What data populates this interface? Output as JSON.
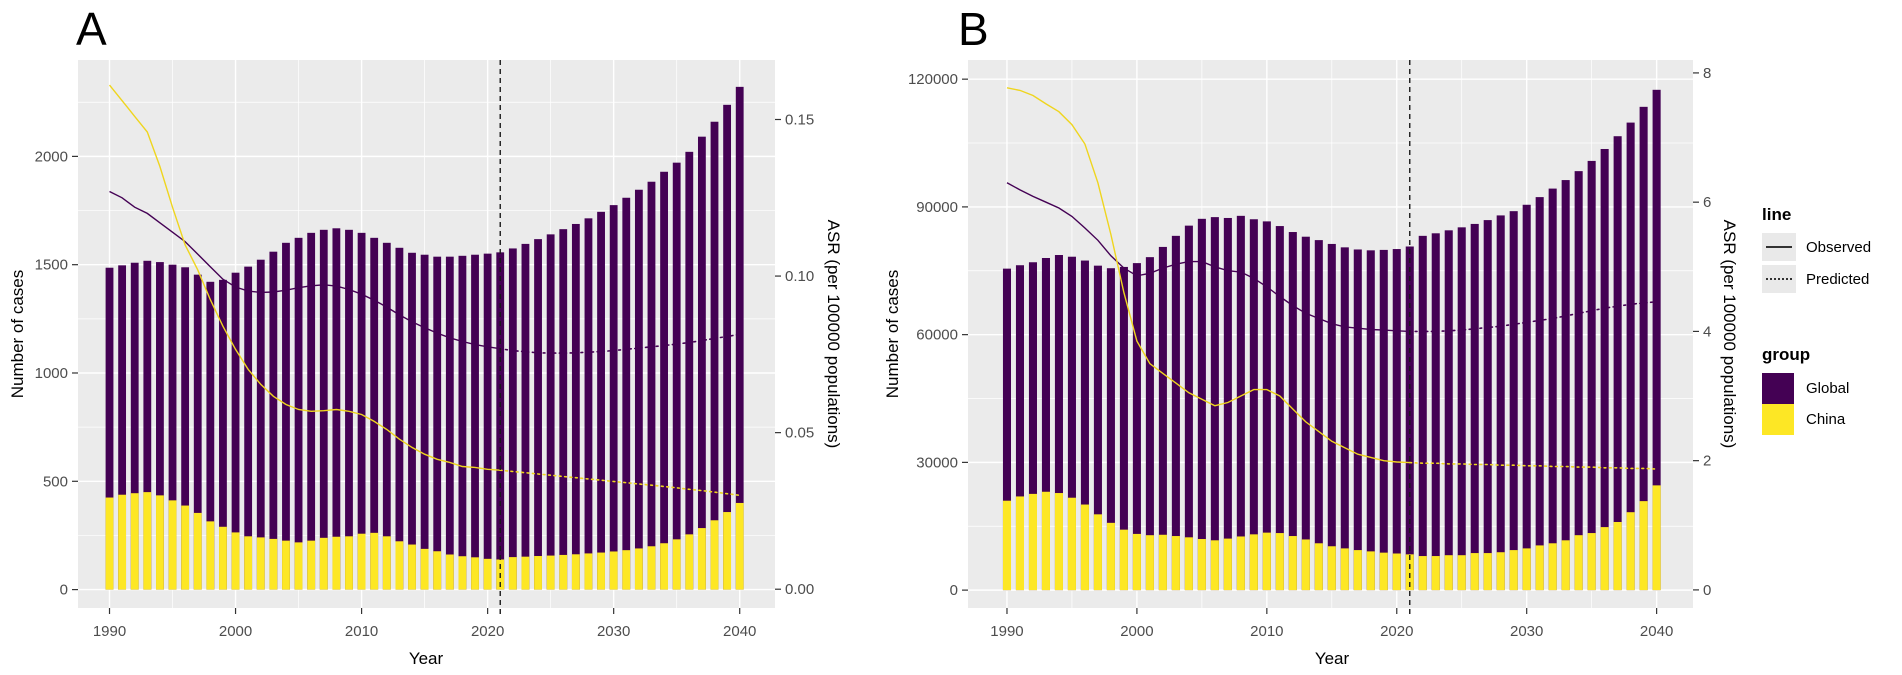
{
  "figure": {
    "background": "#FFFFFF"
  },
  "colors": {
    "global": "#440154",
    "china": "#FDE725",
    "china_line": "#EFD51E",
    "global_line": "#440154",
    "panel_background": "#EBEBEB",
    "grid": "#FFFFFF",
    "axis_text": "#4D4D4D",
    "tick_mark": "#333333",
    "vline": "#1A1A1A",
    "legend_key_background": "#E9E9E9"
  },
  "legend": {
    "position": "right",
    "line_title": "line",
    "entries": [
      {
        "label": "Observed",
        "linetype": "solid"
      },
      {
        "label": "Predicted",
        "linetype": "dotted"
      }
    ],
    "group_title": "group",
    "groups": [
      {
        "label": "Global",
        "color": "#440154"
      },
      {
        "label": "China",
        "color": "#FDE725"
      }
    ]
  },
  "chart_data": [
    {
      "type": "bar+line",
      "panel_label": "A",
      "xlabel": "Year",
      "ylabel_left": "Number of cases",
      "ylabel_right": "ASR (per 100000 populations)",
      "legend_position": "right",
      "grid": true,
      "vline_x": 2021,
      "observed_until": 2021,
      "years": [
        1990,
        1991,
        1992,
        1993,
        1994,
        1995,
        1996,
        1997,
        1998,
        1999,
        2000,
        2001,
        2002,
        2003,
        2004,
        2005,
        2006,
        2007,
        2008,
        2009,
        2010,
        2011,
        2012,
        2013,
        2014,
        2015,
        2016,
        2017,
        2018,
        2019,
        2020,
        2021,
        2022,
        2023,
        2024,
        2025,
        2026,
        2027,
        2028,
        2029,
        2030,
        2031,
        2032,
        2033,
        2034,
        2035,
        2036,
        2037,
        2038,
        2039,
        2040
      ],
      "axes": {
        "x": {
          "label": "Year",
          "ticks": [
            1990,
            2000,
            2010,
            2020,
            2030,
            2040
          ],
          "range": [
            1987.5,
            2042.8
          ]
        },
        "y_left": {
          "label": "Number of cases",
          "ticks": [
            0,
            500,
            1000,
            1500,
            2000
          ],
          "tick_labels": [
            "0",
            "500",
            "1000",
            "1500",
            "2000"
          ],
          "range": [
            -85,
            2445
          ]
        },
        "y_right": {
          "label": "ASR (per 100000 populations)",
          "ticks": [
            0,
            0.05,
            0.1,
            0.15
          ],
          "tick_labels": [
            "0.00",
            "0.05",
            "0.10",
            "0.15"
          ],
          "range": [
            -0.006,
            0.169
          ]
        }
      },
      "series": [
        {
          "name": "Global",
          "role": "cases-bar",
          "axis": "left",
          "color": "#440154",
          "values": [
            1486,
            1497,
            1509,
            1518,
            1512,
            1500,
            1488,
            1454,
            1421,
            1430,
            1463,
            1491,
            1523,
            1560,
            1601,
            1624,
            1647,
            1661,
            1668,
            1661,
            1647,
            1624,
            1601,
            1578,
            1555,
            1546,
            1537,
            1537,
            1541,
            1546,
            1551,
            1557,
            1575,
            1596,
            1618,
            1640,
            1664,
            1688,
            1714,
            1744,
            1775,
            1809,
            1846,
            1883,
            1929,
            1971,
            2021,
            2091,
            2160,
            2238,
            2321
          ]
        },
        {
          "name": "China",
          "role": "cases-bar",
          "axis": "left",
          "color": "#FDE725",
          "values": [
            425,
            438,
            445,
            450,
            435,
            412,
            388,
            354,
            315,
            290,
            264,
            246,
            241,
            234,
            226,
            218,
            226,
            239,
            244,
            246,
            258,
            262,
            246,
            223,
            208,
            188,
            177,
            162,
            154,
            149,
            142,
            139,
            150,
            152,
            155,
            157,
            160,
            163,
            167,
            171,
            176,
            182,
            190,
            200,
            214,
            232,
            255,
            284,
            320,
            358,
            400
          ]
        },
        {
          "name": "Global",
          "role": "asr-line",
          "axis": "right",
          "color": "#440154",
          "values": [
            0.127,
            0.125,
            0.122,
            0.12,
            0.117,
            0.114,
            0.111,
            0.107,
            0.103,
            0.099,
            0.0965,
            0.0952,
            0.0948,
            0.0949,
            0.0955,
            0.0963,
            0.0969,
            0.0972,
            0.0968,
            0.0957,
            0.0942,
            0.0923,
            0.0901,
            0.0876,
            0.0854,
            0.0835,
            0.0818,
            0.0803,
            0.0791,
            0.0781,
            0.0774,
            0.0768,
            0.0762,
            0.0758,
            0.0755,
            0.0754,
            0.0754,
            0.0755,
            0.0757,
            0.0759,
            0.0762,
            0.0766,
            0.077,
            0.0774,
            0.0778,
            0.0783,
            0.0788,
            0.0794,
            0.0801,
            0.0807,
            0.0814
          ]
        },
        {
          "name": "China",
          "role": "asr-line",
          "axis": "right",
          "color": "#EFD51E",
          "values": [
            0.161,
            0.156,
            0.151,
            0.146,
            0.135,
            0.122,
            0.11,
            0.102,
            0.0925,
            0.084,
            0.0766,
            0.0702,
            0.0654,
            0.0616,
            0.059,
            0.0574,
            0.0568,
            0.057,
            0.0574,
            0.0568,
            0.0558,
            0.0536,
            0.051,
            0.0479,
            0.0453,
            0.0431,
            0.0415,
            0.0405,
            0.0392,
            0.0389,
            0.0383,
            0.038,
            0.0376,
            0.0372,
            0.0368,
            0.0364,
            0.036,
            0.0356,
            0.0352,
            0.0348,
            0.0344,
            0.034,
            0.0336,
            0.0332,
            0.0328,
            0.0324,
            0.0319,
            0.0315,
            0.031,
            0.0305,
            0.03
          ]
        }
      ]
    },
    {
      "type": "bar+line",
      "panel_label": "B",
      "xlabel": "Year",
      "ylabel_left": "Number of cases",
      "ylabel_right": "ASR (per 100000 populations)",
      "legend_position": "right",
      "grid": true,
      "vline_x": 2021,
      "observed_until": 2021,
      "years": [
        1990,
        1991,
        1992,
        1993,
        1994,
        1995,
        1996,
        1997,
        1998,
        1999,
        2000,
        2001,
        2002,
        2003,
        2004,
        2005,
        2006,
        2007,
        2008,
        2009,
        2010,
        2011,
        2012,
        2013,
        2014,
        2015,
        2016,
        2017,
        2018,
        2019,
        2020,
        2021,
        2022,
        2023,
        2024,
        2025,
        2026,
        2027,
        2028,
        2029,
        2030,
        2031,
        2032,
        2033,
        2034,
        2035,
        2036,
        2037,
        2038,
        2039,
        2040
      ],
      "axes": {
        "x": {
          "label": "Year",
          "ticks": [
            1990,
            2000,
            2010,
            2020,
            2030,
            2040
          ],
          "range": [
            1987.0,
            2042.8
          ]
        },
        "y_left": {
          "label": "Number of cases",
          "ticks": [
            0,
            30000,
            60000,
            90000,
            120000
          ],
          "tick_labels": [
            "0",
            "30000",
            "60000",
            "90000",
            "120000"
          ],
          "range": [
            -4200,
            124500
          ]
        },
        "y_right": {
          "label": "ASR (per 100000 populations)",
          "ticks": [
            0,
            2,
            4,
            6,
            8
          ],
          "tick_labels": [
            "0",
            "2",
            "4",
            "6",
            "8"
          ],
          "range": [
            -0.28,
            8.2
          ]
        }
      },
      "series": [
        {
          "name": "Global",
          "role": "cases-bar",
          "axis": "left",
          "color": "#440154",
          "values": [
            75500,
            76300,
            77000,
            78000,
            78700,
            78300,
            77400,
            76200,
            75600,
            75900,
            76800,
            78200,
            80600,
            83200,
            85600,
            87200,
            87600,
            87400,
            87900,
            87100,
            86600,
            85500,
            84100,
            83000,
            82200,
            81300,
            80500,
            80000,
            79800,
            79900,
            80100,
            80700,
            83200,
            83800,
            84500,
            85200,
            86000,
            86900,
            88000,
            89000,
            90500,
            92300,
            94300,
            96300,
            98400,
            100800,
            103600,
            106600,
            109800,
            113500,
            117500
          ]
        },
        {
          "name": "China",
          "role": "cases-bar",
          "axis": "left",
          "color": "#FDE725",
          "values": [
            21000,
            22000,
            22600,
            23100,
            22800,
            21700,
            20100,
            17800,
            15800,
            14200,
            13200,
            12900,
            13000,
            12700,
            12400,
            12000,
            11700,
            12100,
            12600,
            13100,
            13500,
            13400,
            12700,
            11900,
            11000,
            10300,
            9800,
            9400,
            9100,
            8800,
            8600,
            8400,
            8000,
            8000,
            8200,
            8200,
            8700,
            8700,
            8900,
            9400,
            9800,
            10500,
            11000,
            11700,
            12900,
            13400,
            14800,
            16000,
            18300,
            20900,
            24600
          ]
        },
        {
          "name": "Global",
          "role": "asr-line",
          "axis": "right",
          "color": "#440154",
          "values": [
            6.3,
            6.19,
            6.09,
            6.0,
            5.91,
            5.78,
            5.6,
            5.41,
            5.17,
            4.98,
            4.86,
            4.9,
            4.98,
            5.04,
            5.08,
            5.08,
            5.0,
            4.94,
            4.92,
            4.82,
            4.69,
            4.54,
            4.4,
            4.28,
            4.2,
            4.12,
            4.07,
            4.05,
            4.03,
            4.02,
            4.01,
            4.0,
            4.0,
            4.0,
            4.01,
            4.02,
            4.04,
            4.06,
            4.08,
            4.11,
            4.14,
            4.17,
            4.2,
            4.24,
            4.28,
            4.32,
            4.36,
            4.39,
            4.42,
            4.44,
            4.46
          ]
        },
        {
          "name": "China",
          "role": "asr-line",
          "axis": "right",
          "color": "#EFD51E",
          "values": [
            7.77,
            7.73,
            7.65,
            7.52,
            7.4,
            7.2,
            6.9,
            6.3,
            5.5,
            4.6,
            3.85,
            3.5,
            3.35,
            3.2,
            3.05,
            2.95,
            2.85,
            2.9,
            3.0,
            3.1,
            3.1,
            3.0,
            2.8,
            2.6,
            2.45,
            2.3,
            2.2,
            2.1,
            2.05,
            2.0,
            1.98,
            1.97,
            1.96,
            1.96,
            1.95,
            1.95,
            1.94,
            1.94,
            1.93,
            1.93,
            1.92,
            1.92,
            1.91,
            1.91,
            1.9,
            1.9,
            1.89,
            1.89,
            1.88,
            1.88,
            1.87
          ]
        }
      ]
    }
  ]
}
